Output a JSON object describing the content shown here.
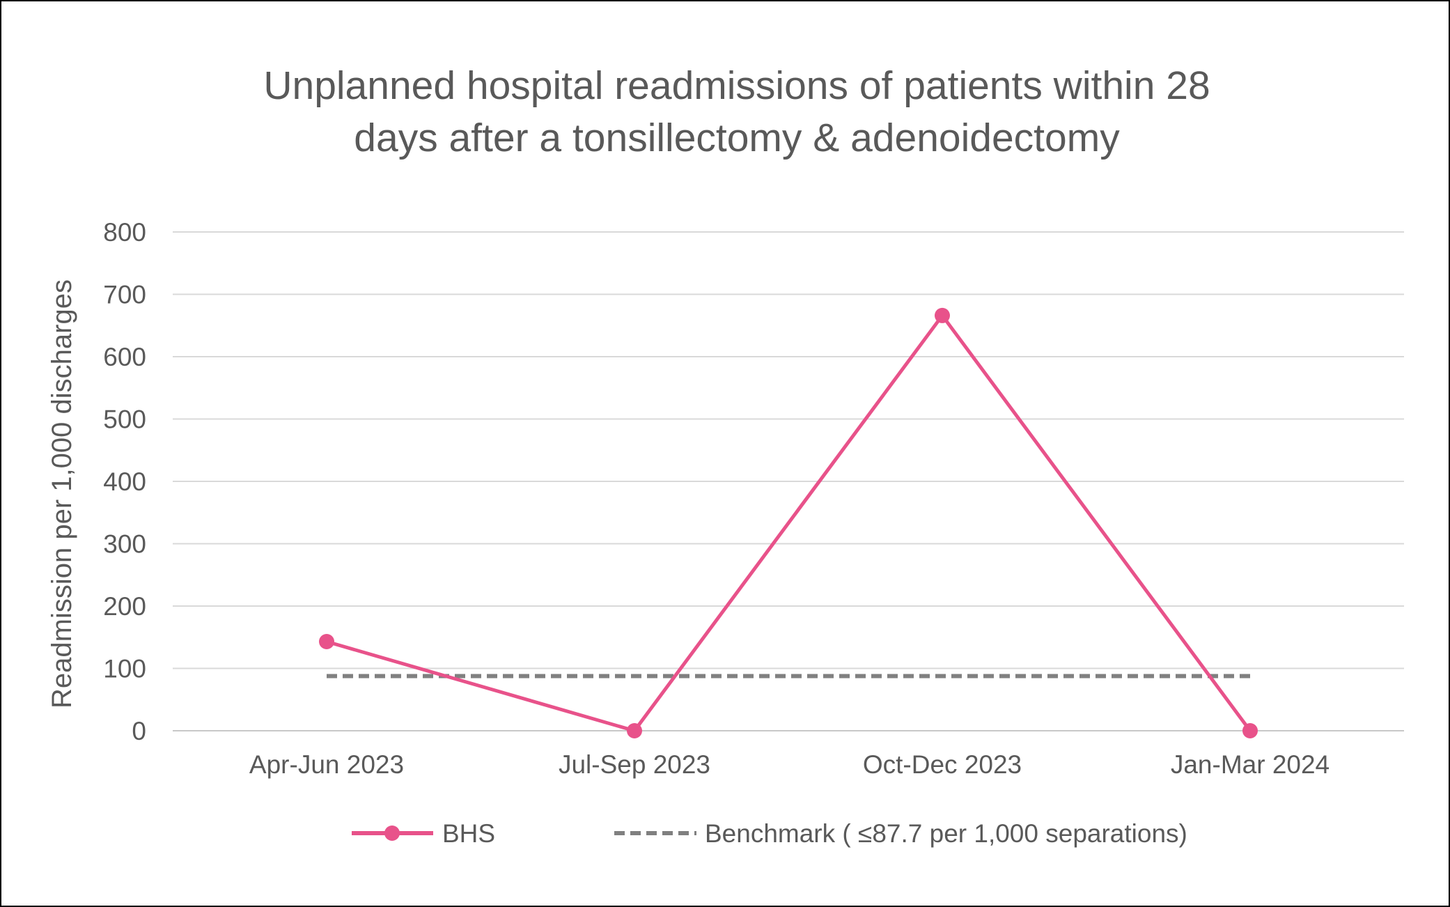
{
  "chart_data": {
    "type": "line",
    "title": [
      "Unplanned hospital readmissions of patients within 28",
      "days after a tonsillectomy & adenoidectomy"
    ],
    "xlabel": "",
    "ylabel": "Readmission per 1,000 discharges",
    "categories": [
      "Apr-Jun 2023",
      "Jul-Sep 2023",
      "Oct-Dec 2023",
      "Jan-Mar 2024"
    ],
    "ylim": [
      0,
      800
    ],
    "yticks": [
      "0",
      "100",
      "200",
      "300",
      "400",
      "500",
      "600",
      "700",
      "800"
    ],
    "grid": true,
    "legend_position": "bottom",
    "series": [
      {
        "name": "BHS",
        "values": [
          143,
          0,
          666,
          0
        ],
        "color": "#E8528A",
        "style": "solid",
        "marker": "circle"
      },
      {
        "name": "Benchmark ( ≤87.7 per 1,000 separations)",
        "values": [
          87.7,
          87.7,
          87.7,
          87.7
        ],
        "color": "#808080",
        "style": "dashed",
        "marker": "none"
      }
    ]
  }
}
